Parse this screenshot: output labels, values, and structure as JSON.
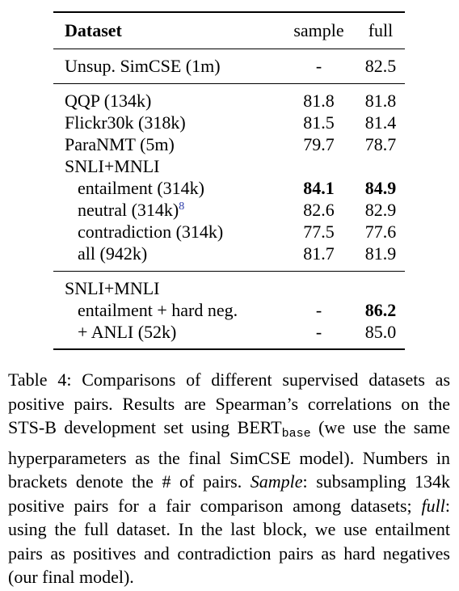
{
  "table": {
    "headers": {
      "dataset": "Dataset",
      "sample": "sample",
      "full": "full"
    },
    "rows": [
      {
        "name": "Unsup. SimCSE (1m)",
        "sample": "-",
        "full": "82.5"
      },
      {
        "name": "QQP (134k)",
        "sample": "81.8",
        "full": "81.8"
      },
      {
        "name": "Flickr30k (318k)",
        "sample": "81.5",
        "full": "81.4"
      },
      {
        "name": "ParaNMT (5m)",
        "sample": "79.7",
        "full": "78.7"
      },
      {
        "name": "SNLI+MNLI",
        "sample": "",
        "full": ""
      },
      {
        "name": "entailment (314k)",
        "sample": "84.1",
        "full": "84.9"
      },
      {
        "name": "neutral (314k)",
        "footnote": "8",
        "sample": "82.6",
        "full": "82.9"
      },
      {
        "name": "contradiction (314k)",
        "sample": "77.5",
        "full": "77.6"
      },
      {
        "name": "all (942k)",
        "sample": "81.7",
        "full": "81.9"
      },
      {
        "name": "SNLI+MNLI",
        "sample": "",
        "full": ""
      },
      {
        "name": "entailment + hard neg.",
        "sample": "-",
        "full": "86.2"
      },
      {
        "name": "+ ANLI (52k)",
        "sample": "-",
        "full": "85.0"
      }
    ]
  },
  "caption": {
    "label": "Table 4:",
    "part1": "Comparisons of different supervised datasets as positive pairs. Results are Spearman’s correlations on the STS-B development set using BERT",
    "subscript": "base",
    "part2": "(we use the same hyperparameters as the final SimCSE model). Numbers in brackets denote the # of pairs.",
    "sample_term": "Sample",
    "part3": ": subsampling 134k positive pairs for a fair comparison among datasets;",
    "full_term": "full",
    "part4": ": using the full dataset. In the last block, we use entailment pairs as positives and contradiction pairs as hard negatives (our final model)."
  }
}
